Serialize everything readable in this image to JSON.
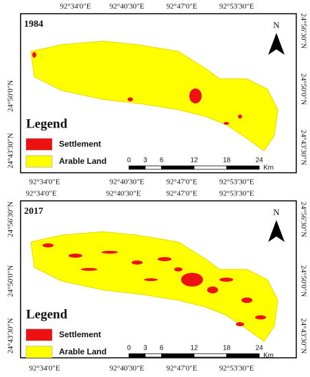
{
  "panels": [
    {
      "year": "1984",
      "top_labels": [
        "92°34'0\"E",
        "92°40'30\"E",
        "92°47'0\"E",
        "92°53'30\"E"
      ],
      "bottom_labels": [
        "92°34'0\"E",
        "92°40'30\"E",
        "92°47'0\"E",
        "92°53'30\"E"
      ],
      "left_labels": [
        "24°50'0\"N",
        "24°43'30\"N"
      ],
      "right_labels": [
        "24°56'30\"N",
        "24°50'0\"N",
        "24°43'30\"N"
      ],
      "legend": {
        "title": "Legend",
        "items": [
          {
            "label": "Settlement",
            "color": "#ee1111"
          },
          {
            "label": "Arable Land",
            "color": "#ffff00"
          }
        ]
      },
      "scale": {
        "labels": [
          0,
          3,
          6,
          12,
          18,
          24
        ],
        "unit": "Km"
      },
      "north": "N"
    },
    {
      "year": "2017",
      "top_labels": [
        "92°34'0\"E",
        "92°40'30\"E",
        "92°47'0\"E",
        "92°53'30\"E"
      ],
      "bottom_labels": [
        "92°34'0\"E",
        "92°40'30\"E",
        "92°47'0\"E",
        "92°53'30\"E"
      ],
      "left_labels": [
        "24°56'30\"N",
        "24°50'0\"N",
        "24°43'30\"N"
      ],
      "right_labels": [
        "24°56'30\"N",
        "24°50'0\"N",
        "24°43'30\"N"
      ],
      "legend": {
        "title": "Legend",
        "items": [
          {
            "label": "Settlement",
            "color": "#ee1111"
          },
          {
            "label": "Arable Land",
            "color": "#ffff00"
          }
        ]
      },
      "scale": {
        "labels": [
          0,
          3,
          6,
          12,
          18,
          24
        ],
        "unit": "Km"
      },
      "north": "N"
    }
  ]
}
